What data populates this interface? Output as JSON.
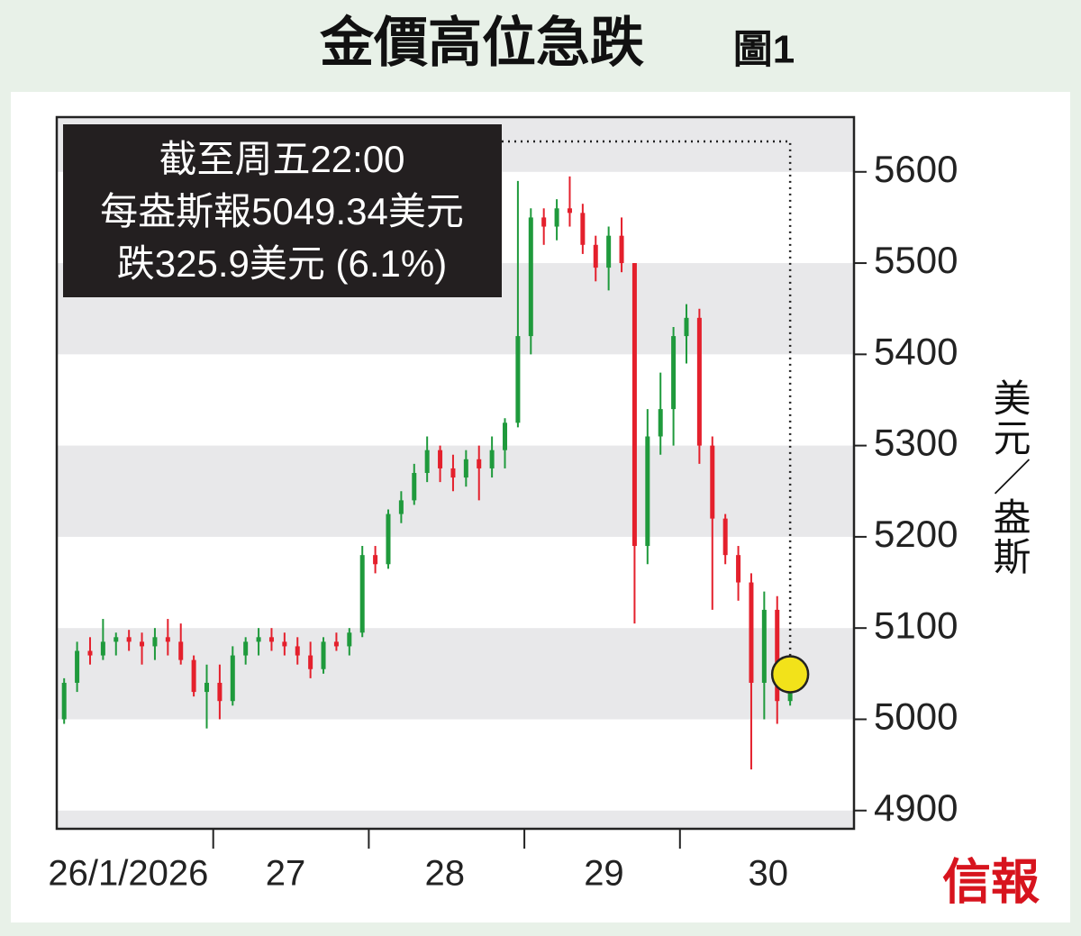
{
  "chart_data": {
    "type": "candlestick",
    "title": "金價高位急跌",
    "figure_label": "圖1",
    "y_label": "美元／盎斯",
    "annotation": [
      "截至周五22:00",
      "每盎斯報5049.34美元",
      "跌325.9美元 (6.1%)"
    ],
    "source": "信報",
    "categories": [
      "26/1/2026",
      "27",
      "28",
      "29",
      "30"
    ],
    "open": [
      5000,
      5040,
      5075,
      5070,
      5085,
      5090,
      5085,
      5080,
      5090,
      5085,
      5065,
      5030,
      5040,
      5020,
      5070,
      5085,
      5090,
      5085,
      5080,
      5070,
      5055,
      5085,
      5080,
      5095,
      5180,
      5170,
      5225,
      5240,
      5270,
      5295,
      5275,
      5265,
      5285,
      5275,
      5295,
      5325,
      5420,
      5550,
      5540,
      5560,
      5555,
      5520,
      5495,
      5530,
      5500,
      5190,
      5310,
      5340,
      5420,
      5440,
      5300,
      5220,
      5180,
      5150,
      5040,
      5120,
      5020
    ],
    "high": [
      5045,
      5085,
      5090,
      5110,
      5095,
      5098,
      5095,
      5100,
      5110,
      5105,
      5070,
      5060,
      5060,
      5080,
      5090,
      5100,
      5100,
      5095,
      5090,
      5085,
      5090,
      5095,
      5100,
      5190,
      5190,
      5230,
      5250,
      5280,
      5310,
      5300,
      5290,
      5295,
      5300,
      5310,
      5330,
      5590,
      5560,
      5560,
      5570,
      5595,
      5565,
      5530,
      5540,
      5550,
      5500,
      5340,
      5380,
      5430,
      5455,
      5450,
      5310,
      5225,
      5190,
      5160,
      5140,
      5135,
      5060
    ],
    "low": [
      4995,
      5030,
      5060,
      5065,
      5070,
      5075,
      5060,
      5065,
      5070,
      5060,
      5025,
      4990,
      5000,
      5015,
      5060,
      5070,
      5075,
      5070,
      5060,
      5045,
      5050,
      5075,
      5070,
      5090,
      5160,
      5165,
      5215,
      5235,
      5260,
      5260,
      5250,
      5255,
      5240,
      5265,
      5275,
      5320,
      5400,
      5520,
      5525,
      5540,
      5510,
      5480,
      5470,
      5490,
      5105,
      5170,
      5290,
      5300,
      5390,
      5280,
      5120,
      5170,
      5130,
      4945,
      5000,
      4995,
      5015
    ],
    "close": [
      5040,
      5075,
      5070,
      5085,
      5090,
      5085,
      5080,
      5090,
      5085,
      5065,
      5030,
      5040,
      5020,
      5070,
      5085,
      5090,
      5085,
      5080,
      5070,
      5055,
      5085,
      5080,
      5095,
      5180,
      5170,
      5225,
      5240,
      5270,
      5295,
      5275,
      5265,
      5285,
      5275,
      5295,
      5325,
      5420,
      5550,
      5540,
      5560,
      5555,
      5520,
      5495,
      5530,
      5500,
      5190,
      5310,
      5340,
      5420,
      5440,
      5300,
      5220,
      5180,
      5150,
      5040,
      5120,
      5020,
      5049.34
    ],
    "up_color": "#1f9a3c",
    "down_color": "#e4202c",
    "marker_color": "#f2e21a",
    "ylim": [
      4880,
      5660
    ],
    "yticks": [
      4900,
      5000,
      5100,
      5200,
      5300,
      5400,
      5500,
      5600
    ],
    "grid": true
  }
}
